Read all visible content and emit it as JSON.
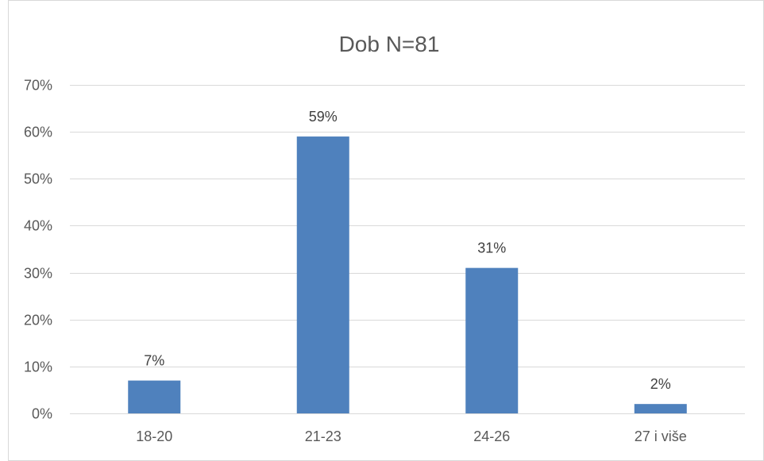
{
  "chart_data": {
    "type": "bar",
    "title": "Dob N=81",
    "categories": [
      "18-20",
      "21-23",
      "24-26",
      "27 i više"
    ],
    "values": [
      7,
      59,
      31,
      2
    ],
    "data_labels": [
      "7%",
      "59%",
      "31%",
      "2%"
    ],
    "ylim": [
      0,
      70
    ],
    "yticks": [
      0,
      10,
      20,
      30,
      40,
      50,
      60,
      70
    ],
    "ytick_labels": [
      "0%",
      "10%",
      "20%",
      "30%",
      "40%",
      "50%",
      "60%",
      "70%"
    ],
    "grid": true,
    "legend": "none",
    "colors": {
      "bar": "#4F81BD",
      "grid": "#D9D9D9",
      "text": "#595959"
    }
  }
}
